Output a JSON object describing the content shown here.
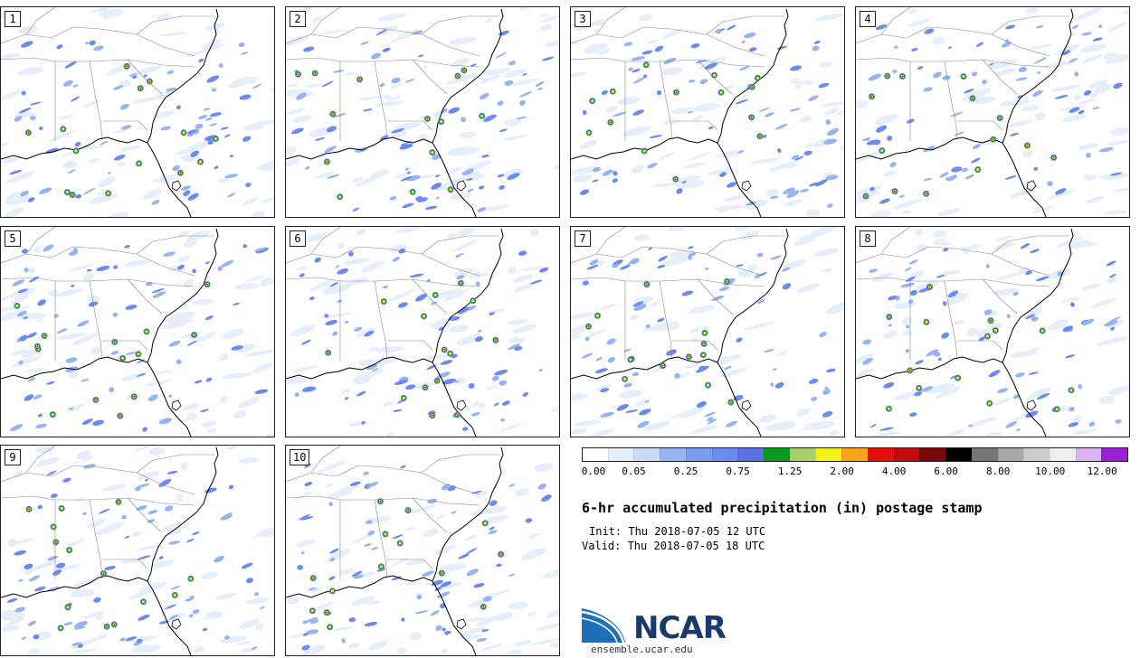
{
  "stamps": [
    {
      "label": "1",
      "seed": 11
    },
    {
      "label": "2",
      "seed": 23
    },
    {
      "label": "3",
      "seed": 37
    },
    {
      "label": "4",
      "seed": 41
    },
    {
      "label": "5",
      "seed": 53
    },
    {
      "label": "6",
      "seed": 67
    },
    {
      "label": "7",
      "seed": 71
    },
    {
      "label": "8",
      "seed": 83
    },
    {
      "label": "9",
      "seed": 97
    },
    {
      "label": "10",
      "seed": 101
    }
  ],
  "colorbar": {
    "colors": [
      "#ffffff",
      "#e6eefc",
      "#cbdaf8",
      "#96b4f2",
      "#7b9bf0",
      "#6c8bef",
      "#5a72e6",
      "#0a9a1f",
      "#a9cf6a",
      "#f4f21a",
      "#f7a416",
      "#e60d0d",
      "#c00c0c",
      "#7a0808",
      "#000000",
      "#777777",
      "#a8a8a8",
      "#cccccc",
      "#eeeeee",
      "#dcb4f2",
      "#9a1fd6"
    ],
    "labels": [
      "0.00",
      "0.05",
      "0.25",
      "0.75",
      "1.25",
      "2.00",
      "4.00",
      "6.00",
      "8.00",
      "10.00",
      "12.00"
    ]
  },
  "title": "6-hr accumulated precipitation (in) postage stamp",
  "init": "Init: Thu 2018-07-05 12 UTC",
  "valid": "Valid: Thu 2018-07-05 18 UTC",
  "logo": {
    "text": "NCAR",
    "url": "ensemble.ucar.edu"
  }
}
